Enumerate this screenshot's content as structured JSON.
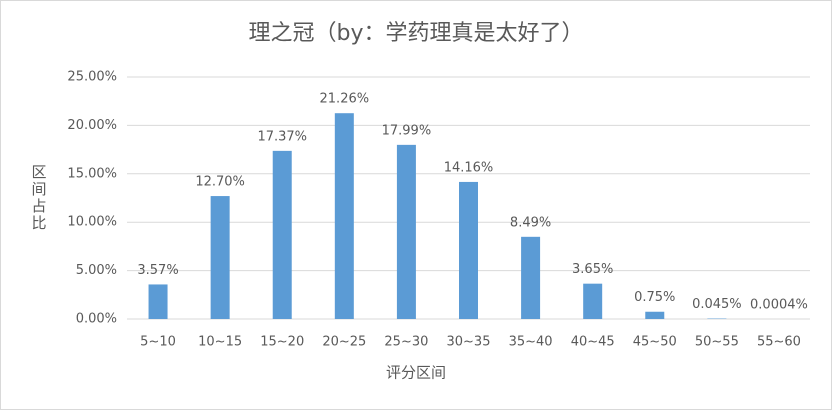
{
  "chart_data": {
    "type": "bar",
    "title": "理之冠（by：学药理真是太好了）",
    "x_label": "评分区间",
    "y_label": "区间占比",
    "categories": [
      "5~10",
      "10~15",
      "15~20",
      "20~25",
      "25~30",
      "30~35",
      "35~40",
      "40~45",
      "45~50",
      "50~55",
      "55~60"
    ],
    "values": [
      3.57,
      12.7,
      17.37,
      21.26,
      17.99,
      14.16,
      8.49,
      3.65,
      0.75,
      0.045,
      0.0004
    ],
    "value_labels": [
      "3.57%",
      "12.70%",
      "17.37%",
      "21.26%",
      "17.99%",
      "14.16%",
      "8.49%",
      "3.65%",
      "0.75%",
      "0.045%",
      "0.0004%"
    ],
    "color": "#5b9bd5",
    "ylim": [
      0,
      25
    ],
    "yticks": [
      {
        "value": 0,
        "label": "0.00%"
      },
      {
        "value": 5,
        "label": "5.00%"
      },
      {
        "value": 10,
        "label": "10.00%"
      },
      {
        "value": 15,
        "label": "15.00%"
      },
      {
        "value": 20,
        "label": "20.00%"
      },
      {
        "value": 25,
        "label": "25.00%"
      }
    ],
    "grid": true
  }
}
